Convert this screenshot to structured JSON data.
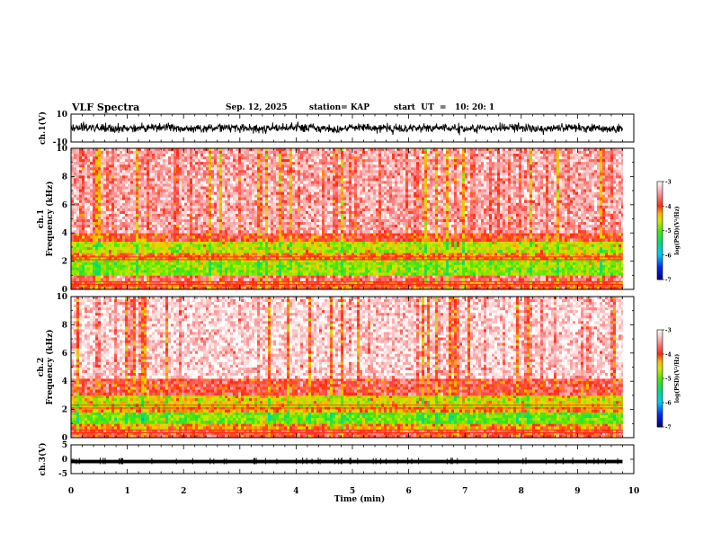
{
  "header": {
    "title": "VLF Spectra",
    "date": "Sep. 12, 2025",
    "station": "station= KAP",
    "start": "start  UT  =   10: 20: 1"
  },
  "chart_data": [
    {
      "type": "line",
      "name": "ch1-waveform",
      "ylabel": "ch.1(V)",
      "ylim": [
        -10,
        10
      ],
      "yticks": [
        "10",
        "-10"
      ],
      "xlim": [
        0,
        10
      ],
      "description_series": "noisy waveform between about -6 and 5 V over 0-9.8 min"
    },
    {
      "type": "heatmap",
      "name": "ch1-spectrogram",
      "ylabel": "ch.1\nFrequency  (kHz)",
      "ylim": [
        0,
        10
      ],
      "yticks": [
        "0",
        "2",
        "4",
        "6",
        "8",
        "10"
      ],
      "xlim": [
        0,
        10
      ],
      "data_end_min": 9.8,
      "bands_khz": [
        {
          "from": 0.0,
          "to": 0.6,
          "level": -4.0
        },
        {
          "from": 0.6,
          "to": 1.0,
          "level": -3.6
        },
        {
          "from": 1.0,
          "to": 2.1,
          "level": -4.8
        },
        {
          "from": 2.1,
          "to": 2.6,
          "level": -4.1
        },
        {
          "from": 2.6,
          "to": 3.4,
          "level": -4.6
        },
        {
          "from": 3.4,
          "to": 4.0,
          "level": -3.9
        },
        {
          "from": 4.0,
          "to": 10.0,
          "level": -3.4
        }
      ]
    },
    {
      "type": "heatmap",
      "name": "ch2-spectrogram",
      "ylabel": "ch.2\nFrequency  (kHz)",
      "ylim": [
        0,
        10
      ],
      "yticks": [
        "0",
        "2",
        "4",
        "6",
        "8",
        "10"
      ],
      "xlim": [
        0,
        10
      ],
      "data_end_min": 9.8,
      "bands_khz": [
        {
          "from": 0.0,
          "to": 0.6,
          "level": -3.8
        },
        {
          "from": 0.6,
          "to": 1.0,
          "level": -4.2
        },
        {
          "from": 1.0,
          "to": 1.8,
          "level": -4.9
        },
        {
          "from": 1.8,
          "to": 2.2,
          "level": -4.2
        },
        {
          "from": 2.2,
          "to": 3.0,
          "level": -4.5
        },
        {
          "from": 3.0,
          "to": 4.2,
          "level": -3.8
        },
        {
          "from": 4.2,
          "to": 10.0,
          "level": -3.2
        }
      ]
    },
    {
      "type": "line",
      "name": "ch3-waveform",
      "ylabel": "ch.3(V)",
      "ylim": [
        -5,
        5
      ],
      "yticks": [
        "5",
        "0",
        "-5"
      ],
      "xlim": [
        0,
        10
      ],
      "xlabel": "Time  (min)",
      "xticks": [
        "0",
        "1",
        "2",
        "3",
        "4",
        "5",
        "6",
        "7",
        "8",
        "9",
        "10"
      ],
      "band_center_v": -0.8,
      "band_halfwidth_v": 0.6
    }
  ],
  "colorbars": [
    {
      "name": "ch1-colorbar",
      "label": "log(PSD)(V²/Hz)",
      "range": [
        -7,
        -3
      ],
      "ticks": [
        "-3",
        "-4",
        "-5",
        "-6",
        "-7"
      ]
    },
    {
      "name": "ch2-colorbar",
      "label": "log(PSD)(V²/Hz)",
      "range": [
        -7,
        -3
      ],
      "ticks": [
        "-3",
        "-4",
        "-5",
        "-6",
        "-7"
      ]
    }
  ]
}
